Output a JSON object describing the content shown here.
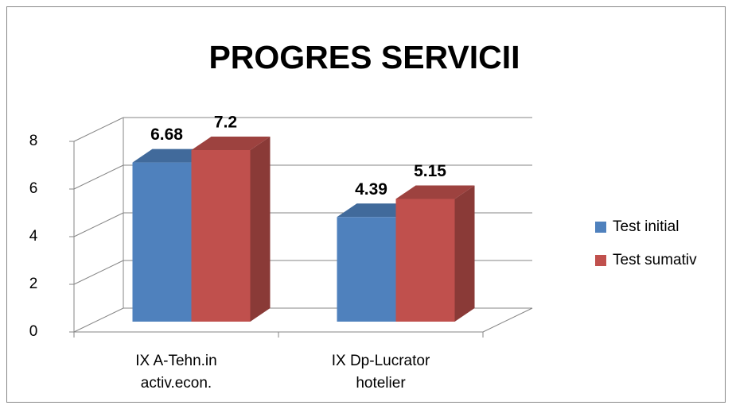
{
  "chart_data": {
    "type": "bar3d",
    "title": "PROGRES SERVICII",
    "categories": [
      "IX A-Tehn.in activ.econ.",
      "IX Dp-Lucrator hotelier"
    ],
    "series": [
      {
        "name": "Test initial",
        "color": "#4f81bd",
        "values": [
          6.68,
          4.39
        ]
      },
      {
        "name": "Test sumativ",
        "color": "#c0504d",
        "values": [
          7.2,
          5.15
        ]
      }
    ],
    "ylim": [
      0,
      8
    ],
    "yticks": [
      0,
      2,
      4,
      6,
      8
    ],
    "grid": true,
    "legend": "right"
  }
}
